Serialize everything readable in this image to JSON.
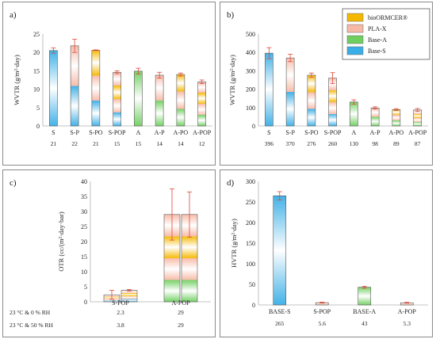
{
  "colors": {
    "bioORMCER": "#f5b800",
    "PLA-X": "#f7b9a6",
    "Base-A": "#6fcf5f",
    "Base-S": "#3aaee6",
    "error": "#e0473a",
    "axis": "#b0b0b0"
  },
  "chart_data": [
    {
      "panel_label": "a)",
      "type": "bar",
      "ylabel": "WVTR (g/m²·day)",
      "ylim": [
        0,
        25
      ],
      "yticks": [
        0,
        5,
        10,
        15,
        20,
        25
      ],
      "grid": false,
      "categories": [
        "S",
        "S-P",
        "S-PO",
        "S-POP",
        "A",
        "A-P",
        "A-PO",
        "A-POP"
      ],
      "values": [
        20.5,
        21.8,
        20.6,
        14.6,
        14.9,
        13.8,
        14.0,
        12.0
      ],
      "errors": [
        0.7,
        1.8,
        0.1,
        0.4,
        0.8,
        0.8,
        0.4,
        0.5
      ],
      "value_labels": [
        "21",
        "22",
        "21",
        "15",
        "15",
        "14",
        "14",
        "12"
      ],
      "layers": [
        [
          "Base-S"
        ],
        [
          "Base-S",
          "PLA-X"
        ],
        [
          "Base-S",
          "PLA-X",
          "bioORMCER"
        ],
        [
          "Base-S",
          "PLA-X",
          "bioORMCER",
          "PLA-X"
        ],
        [
          "Base-A"
        ],
        [
          "Base-A",
          "PLA-X"
        ],
        [
          "Base-A",
          "PLA-X",
          "bioORMCER"
        ],
        [
          "Base-A",
          "PLA-X",
          "bioORMCER",
          "PLA-X"
        ]
      ]
    },
    {
      "panel_label": "b)",
      "type": "bar",
      "ylabel": "WVTR (g/m²·day)",
      "ylim": [
        0,
        500
      ],
      "yticks": [
        0,
        100,
        200,
        300,
        400,
        500
      ],
      "grid": false,
      "categories": [
        "S",
        "S-P",
        "S-PO",
        "S-POP",
        "A",
        "A-P",
        "A-PO",
        "A-POP"
      ],
      "values": [
        396,
        370,
        276,
        260,
        130,
        98,
        89,
        87
      ],
      "errors": [
        30,
        20,
        12,
        30,
        12,
        6,
        5,
        8
      ],
      "value_labels": [
        "396",
        "370",
        "276",
        "260",
        "130",
        "98",
        "89",
        "87"
      ],
      "layers": [
        [
          "Base-S"
        ],
        [
          "Base-S",
          "PLA-X"
        ],
        [
          "Base-S",
          "PLA-X",
          "bioORMCER"
        ],
        [
          "Base-S",
          "PLA-X",
          "bioORMCER",
          "PLA-X"
        ],
        [
          "Base-A"
        ],
        [
          "Base-A",
          "PLA-X"
        ],
        [
          "Base-A",
          "PLA-X",
          "bioORMCER"
        ],
        [
          "Base-A",
          "PLA-X",
          "bioORMCER",
          "PLA-X"
        ]
      ],
      "legend": {
        "placement": "top-right",
        "entries": [
          "bioORMCER®",
          "PLA-X",
          "Base-A",
          "Base-S"
        ],
        "keys": [
          "bioORMCER",
          "PLA-X",
          "Base-A",
          "Base-S"
        ]
      }
    },
    {
      "panel_label": "c)",
      "type": "bar",
      "ylabel": "OTR (cc/(m²·day·bar)",
      "ylim": [
        0,
        40
      ],
      "yticks": [
        0,
        5,
        10,
        15,
        20,
        25,
        30,
        35,
        40
      ],
      "grid": false,
      "categories": [
        "S-POP",
        "A-POP"
      ],
      "series": [
        {
          "row_label": "23 °C & 0 % RH",
          "values": [
            2.3,
            29
          ],
          "errors": [
            1.5,
            8.5
          ],
          "value_labels": [
            "2.3",
            "29"
          ]
        },
        {
          "row_label": "23 °C & 50 % RH",
          "values": [
            3.8,
            29
          ],
          "errors": [
            0.3,
            7.5
          ],
          "value_labels": [
            "3.8",
            "29"
          ]
        }
      ],
      "layers": [
        [
          "Base-S",
          "PLA-X",
          "bioORMCER",
          "PLA-X"
        ],
        [
          "Base-A",
          "PLA-X",
          "bioORMCER",
          "PLA-X"
        ]
      ]
    },
    {
      "panel_label": "d)",
      "type": "bar",
      "ylabel": "HVTR (g/m²·day)",
      "ylim": [
        0,
        300
      ],
      "yticks": [
        0,
        50,
        100,
        150,
        200,
        250,
        300
      ],
      "grid": false,
      "categories": [
        "BASE-S",
        "S-POP",
        "BASE-A",
        "A-POP"
      ],
      "values": [
        265,
        5.6,
        43,
        5.3
      ],
      "errors": [
        10,
        1.2,
        2.5,
        1.0
      ],
      "value_labels": [
        "265",
        "5.6",
        "43",
        "5.3"
      ],
      "layers": [
        [
          "Base-S"
        ],
        [
          "Base-S",
          "PLA-X",
          "bioORMCER",
          "PLA-X"
        ],
        [
          "Base-A"
        ],
        [
          "Base-A",
          "PLA-X",
          "bioORMCER",
          "PLA-X"
        ]
      ]
    }
  ]
}
